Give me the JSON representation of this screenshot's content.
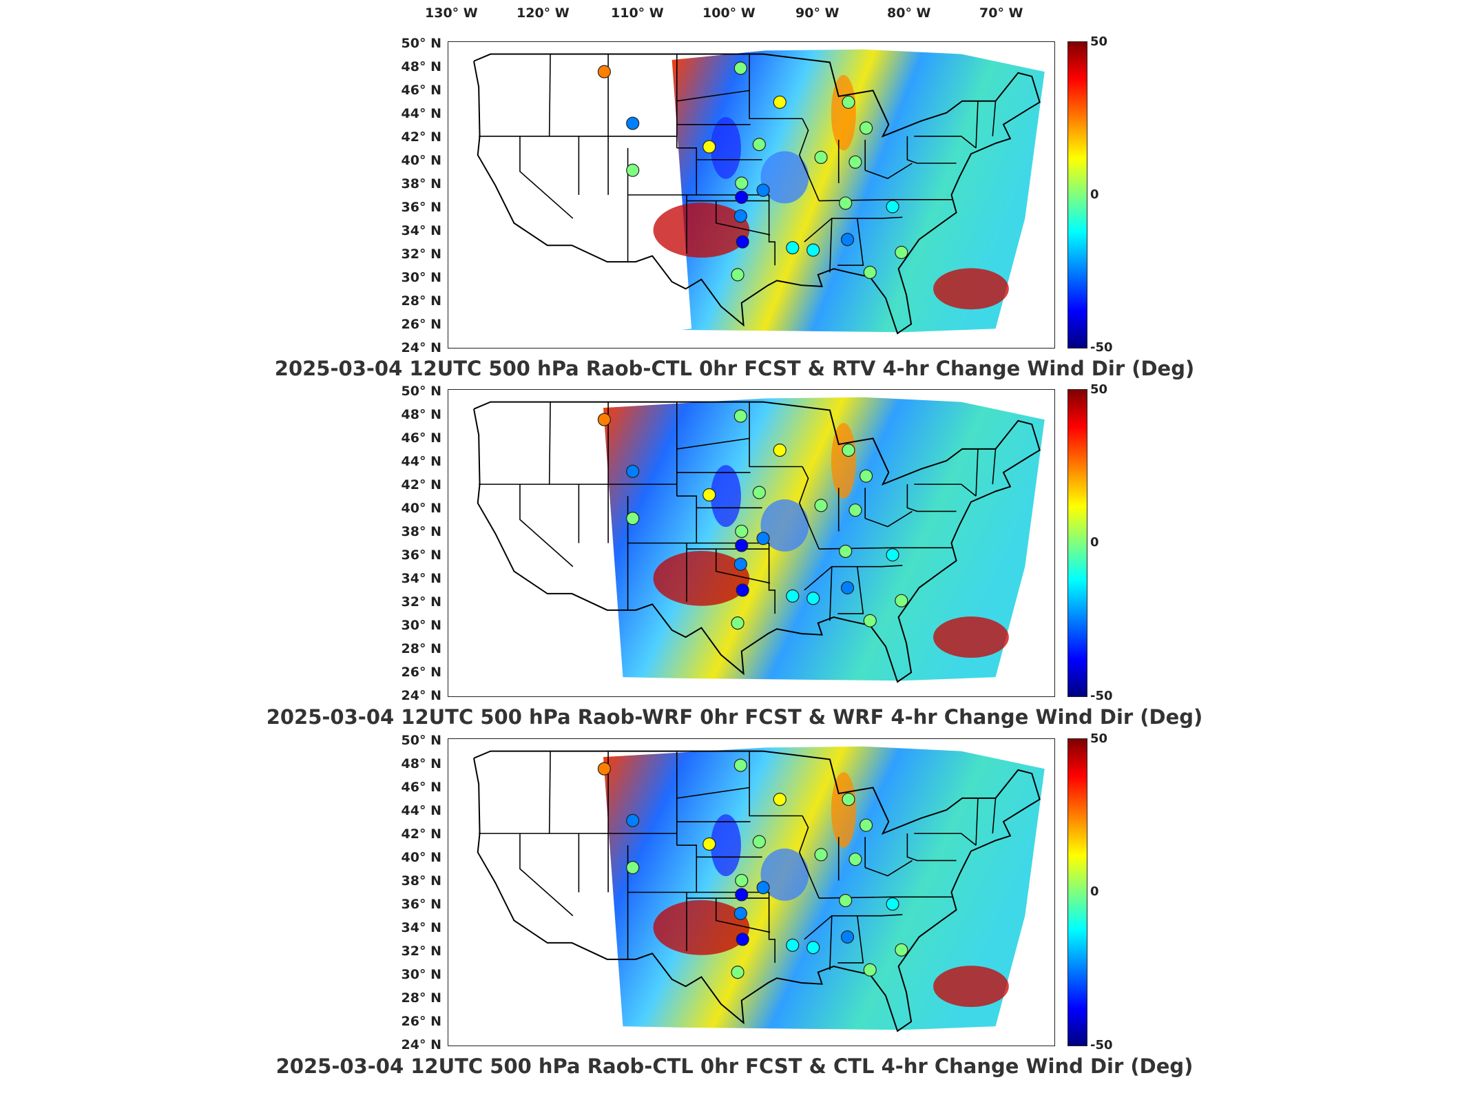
{
  "longitude_labels": [
    "130° W",
    "120° W",
    "110° W",
    "100° W",
    "90° W",
    "80° W",
    "70° W"
  ],
  "latitude_labels": [
    "50° N",
    "48° N",
    "46° N",
    "44° N",
    "42° N",
    "40° N",
    "38° N",
    "36° N",
    "34° N",
    "32° N",
    "30° N",
    "28° N",
    "26° N",
    "24° N"
  ],
  "colorbar": {
    "max_label": "50",
    "mid_label": "0",
    "min_label": "-50",
    "colors": [
      "#7f0000",
      "#ff0000",
      "#ff7f00",
      "#ffff00",
      "#7fff7f",
      "#00ffff",
      "#007fff",
      "#0000ff",
      "#00007f"
    ]
  },
  "panels": [
    {
      "title": "2025-03-04 12UTC 500 hPa Raob-CTL 0hr FCST & RTV 4-hr Change Wind Dir (Deg)"
    },
    {
      "title": "2025-03-04 12UTC 500 hPa Raob-WRF 0hr FCST & WRF 4-hr Change Wind Dir (Deg)"
    },
    {
      "title": "2025-03-04 12UTC 500 hPa Raob-CTL 0hr FCST & CTL 4-hr Change Wind Dir (Deg)"
    }
  ],
  "stations": [
    {
      "lon": -111.4,
      "lat": 47.5,
      "value": 30
    },
    {
      "lon": -108.5,
      "lat": 43.1,
      "value": -30
    },
    {
      "lon": -108.5,
      "lat": 39.1,
      "value": 5
    },
    {
      "lon": -97.5,
      "lat": 47.8,
      "value": -5
    },
    {
      "lon": -93.5,
      "lat": 44.9,
      "value": 10
    },
    {
      "lon": -100.7,
      "lat": 41.1,
      "value": 15
    },
    {
      "lon": -95.6,
      "lat": 41.3,
      "value": -5
    },
    {
      "lon": -89.3,
      "lat": 40.2,
      "value": 5
    },
    {
      "lon": -86.5,
      "lat": 44.9,
      "value": 0
    },
    {
      "lon": -84.7,
      "lat": 42.7,
      "value": 5
    },
    {
      "lon": -85.8,
      "lat": 39.8,
      "value": 0
    },
    {
      "lon": -97.4,
      "lat": 38.0,
      "value": 5
    },
    {
      "lon": -95.2,
      "lat": 37.4,
      "value": -20
    },
    {
      "lon": -97.4,
      "lat": 36.8,
      "value": -40
    },
    {
      "lon": -97.5,
      "lat": 35.2,
      "value": -25
    },
    {
      "lon": -97.3,
      "lat": 33.0,
      "value": -40
    },
    {
      "lon": -92.2,
      "lat": 32.5,
      "value": -10
    },
    {
      "lon": -90.1,
      "lat": 32.3,
      "value": -15
    },
    {
      "lon": -86.8,
      "lat": 36.3,
      "value": 5
    },
    {
      "lon": -86.6,
      "lat": 33.2,
      "value": -20
    },
    {
      "lon": -82.0,
      "lat": 36.0,
      "value": -10
    },
    {
      "lon": -81.1,
      "lat": 32.1,
      "value": 5
    },
    {
      "lon": -84.3,
      "lat": 30.4,
      "value": -5
    },
    {
      "lon": -97.8,
      "lat": 30.2,
      "value": 0
    }
  ]
}
